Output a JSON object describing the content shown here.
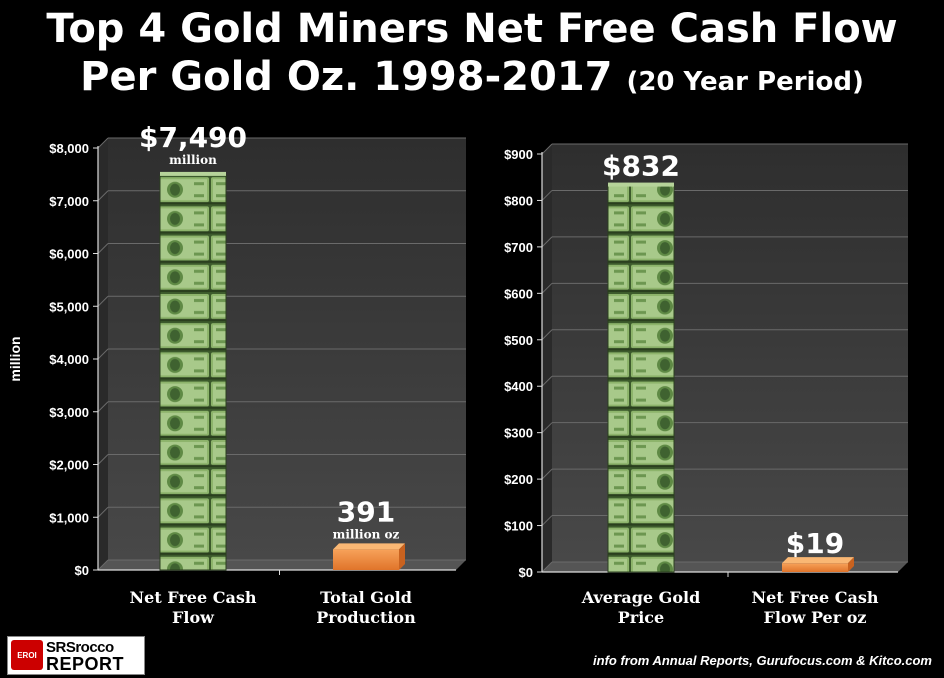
{
  "title": {
    "line1": "Top 4 Gold Miners Net Free Cash Flow",
    "line2_main": "Per Gold Oz. 1998-2017",
    "line2_note": "(20 Year Period)"
  },
  "footer": "info from Annual Reports, Gurufocus.com & Kitco.com",
  "logo": {
    "emblem": "EROI",
    "word1": "SRSrocco",
    "word2": "REPORT"
  },
  "colors": {
    "background": "#000000",
    "plot_bg": "#3c3c3c",
    "money_green": "#6f9a4a",
    "orange_bar": "#f08a3a",
    "text": "#ffffff"
  },
  "chart_data": [
    {
      "type": "bar",
      "categories": [
        "Net Free Cash Flow",
        "Total Gold Production"
      ],
      "values": [
        7490,
        391
      ],
      "data_labels": [
        {
          "value": "$7,490",
          "unit": "million"
        },
        {
          "value": "391",
          "unit": "million oz"
        }
      ],
      "bar_styles": [
        "money-stack",
        "orange"
      ],
      "ylabel": "million",
      "ylim": [
        0,
        8000
      ],
      "yticks": [
        0,
        1000,
        2000,
        3000,
        4000,
        5000,
        6000,
        7000,
        8000
      ],
      "ytick_labels": [
        "$0",
        "$1,000",
        "$2,000",
        "$3,000",
        "$4,000",
        "$5,000",
        "$6,000",
        "$7,000",
        "$8,000"
      ],
      "grid": true
    },
    {
      "type": "bar",
      "categories": [
        "Average Gold Price",
        "Net Free Cash Flow Per oz"
      ],
      "values": [
        832,
        19
      ],
      "data_labels": [
        {
          "value": "$832",
          "unit": ""
        },
        {
          "value": "$19",
          "unit": ""
        }
      ],
      "bar_styles": [
        "money-stack",
        "orange"
      ],
      "ylabel": "",
      "ylim": [
        0,
        900
      ],
      "yticks": [
        0,
        100,
        200,
        300,
        400,
        500,
        600,
        700,
        800,
        900
      ],
      "ytick_labels": [
        "$0",
        "$100",
        "$200",
        "$300",
        "$400",
        "$500",
        "$600",
        "$700",
        "$800",
        "$900"
      ],
      "grid": true
    }
  ]
}
